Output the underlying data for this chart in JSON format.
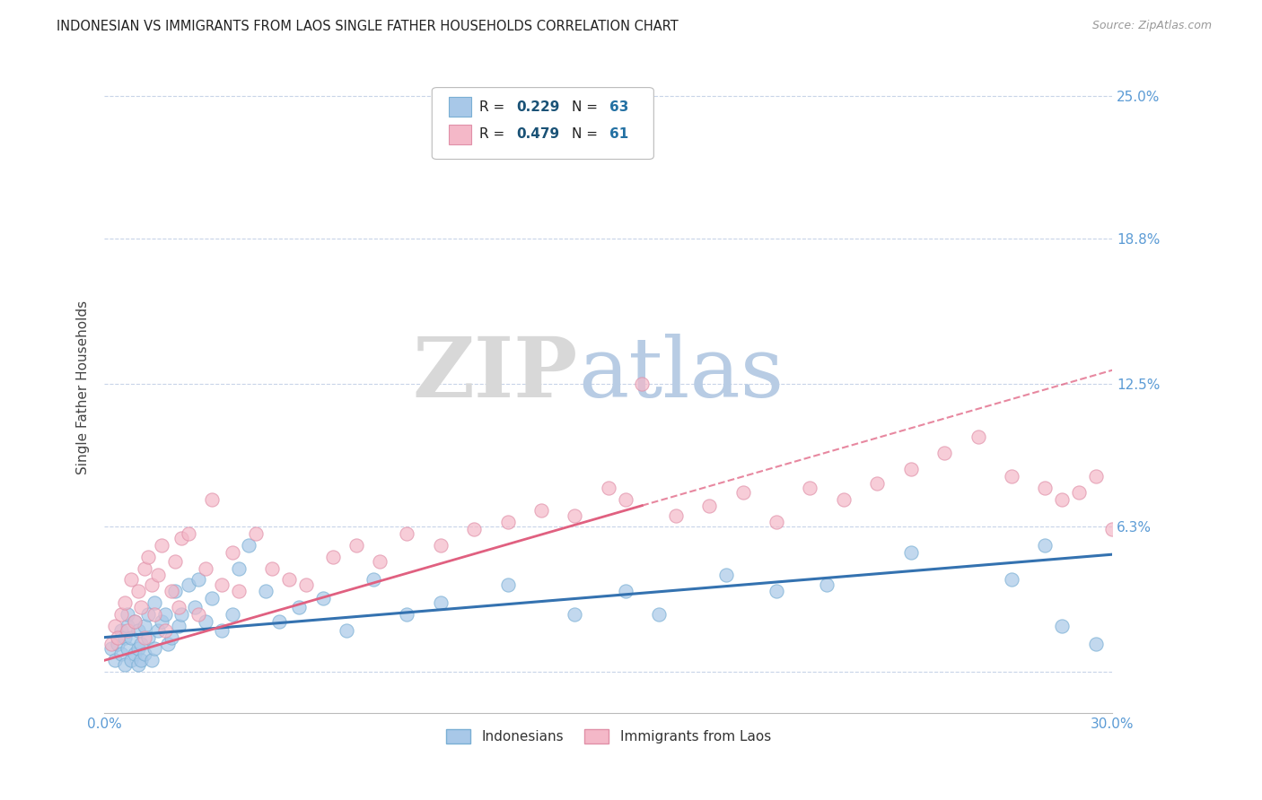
{
  "title": "INDONESIAN VS IMMIGRANTS FROM LAOS SINGLE FATHER HOUSEHOLDS CORRELATION CHART",
  "source": "Source: ZipAtlas.com",
  "ylabel": "Single Father Households",
  "xlim": [
    0.0,
    0.3
  ],
  "ylim": [
    -0.018,
    0.265
  ],
  "ytick_positions": [
    0.0,
    0.063,
    0.125,
    0.188,
    0.25
  ],
  "ytick_labels": [
    "",
    "6.3%",
    "12.5%",
    "18.8%",
    "25.0%"
  ],
  "R_blue": 0.229,
  "N_blue": 63,
  "R_pink": 0.479,
  "N_pink": 61,
  "blue_color": "#a8c8e8",
  "blue_edge_color": "#7aafd4",
  "blue_line_color": "#3472b0",
  "pink_color": "#f4b8c8",
  "pink_edge_color": "#e090a8",
  "pink_line_color": "#e06080",
  "axis_tick_color": "#5b9bd5",
  "grid_color": "#c8d4e8",
  "title_color": "#222222",
  "watermark_zip_color": "#d8d8d8",
  "watermark_atlas_color": "#b8cce4",
  "legend_R_color": "#1a5276",
  "legend_N_color": "#2471a3",
  "blue_intercept": 0.015,
  "blue_slope": 0.12,
  "pink_intercept": 0.005,
  "pink_slope": 0.42,
  "blue_scatter_x": [
    0.002,
    0.003,
    0.004,
    0.005,
    0.005,
    0.006,
    0.006,
    0.007,
    0.007,
    0.007,
    0.008,
    0.008,
    0.009,
    0.009,
    0.01,
    0.01,
    0.01,
    0.011,
    0.011,
    0.012,
    0.012,
    0.013,
    0.013,
    0.014,
    0.015,
    0.015,
    0.016,
    0.017,
    0.018,
    0.019,
    0.02,
    0.021,
    0.022,
    0.023,
    0.025,
    0.027,
    0.028,
    0.03,
    0.032,
    0.035,
    0.038,
    0.04,
    0.043,
    0.048,
    0.052,
    0.058,
    0.065,
    0.072,
    0.08,
    0.09,
    0.1,
    0.12,
    0.14,
    0.155,
    0.165,
    0.185,
    0.2,
    0.215,
    0.24,
    0.27,
    0.28,
    0.285,
    0.295
  ],
  "blue_scatter_y": [
    0.01,
    0.005,
    0.012,
    0.008,
    0.018,
    0.003,
    0.015,
    0.01,
    0.02,
    0.025,
    0.005,
    0.015,
    0.008,
    0.022,
    0.003,
    0.01,
    0.018,
    0.005,
    0.012,
    0.008,
    0.02,
    0.025,
    0.015,
    0.005,
    0.01,
    0.03,
    0.018,
    0.022,
    0.025,
    0.012,
    0.015,
    0.035,
    0.02,
    0.025,
    0.038,
    0.028,
    0.04,
    0.022,
    0.032,
    0.018,
    0.025,
    0.045,
    0.055,
    0.035,
    0.022,
    0.028,
    0.032,
    0.018,
    0.04,
    0.025,
    0.03,
    0.038,
    0.025,
    0.035,
    0.025,
    0.042,
    0.035,
    0.038,
    0.052,
    0.04,
    0.055,
    0.02,
    0.012
  ],
  "pink_scatter_x": [
    0.002,
    0.003,
    0.004,
    0.005,
    0.006,
    0.007,
    0.008,
    0.009,
    0.01,
    0.011,
    0.012,
    0.012,
    0.013,
    0.014,
    0.015,
    0.016,
    0.017,
    0.018,
    0.02,
    0.021,
    0.022,
    0.023,
    0.025,
    0.028,
    0.03,
    0.032,
    0.035,
    0.038,
    0.04,
    0.045,
    0.05,
    0.055,
    0.06,
    0.068,
    0.075,
    0.082,
    0.09,
    0.1,
    0.11,
    0.12,
    0.13,
    0.14,
    0.15,
    0.155,
    0.16,
    0.17,
    0.18,
    0.19,
    0.2,
    0.21,
    0.22,
    0.23,
    0.24,
    0.25,
    0.26,
    0.27,
    0.28,
    0.285,
    0.29,
    0.295,
    0.3
  ],
  "pink_scatter_y": [
    0.012,
    0.02,
    0.015,
    0.025,
    0.03,
    0.018,
    0.04,
    0.022,
    0.035,
    0.028,
    0.045,
    0.015,
    0.05,
    0.038,
    0.025,
    0.042,
    0.055,
    0.018,
    0.035,
    0.048,
    0.028,
    0.058,
    0.06,
    0.025,
    0.045,
    0.075,
    0.038,
    0.052,
    0.035,
    0.06,
    0.045,
    0.04,
    0.038,
    0.05,
    0.055,
    0.048,
    0.06,
    0.055,
    0.062,
    0.065,
    0.07,
    0.068,
    0.08,
    0.075,
    0.125,
    0.068,
    0.072,
    0.078,
    0.065,
    0.08,
    0.075,
    0.082,
    0.088,
    0.095,
    0.102,
    0.085,
    0.08,
    0.075,
    0.078,
    0.085,
    0.062
  ]
}
